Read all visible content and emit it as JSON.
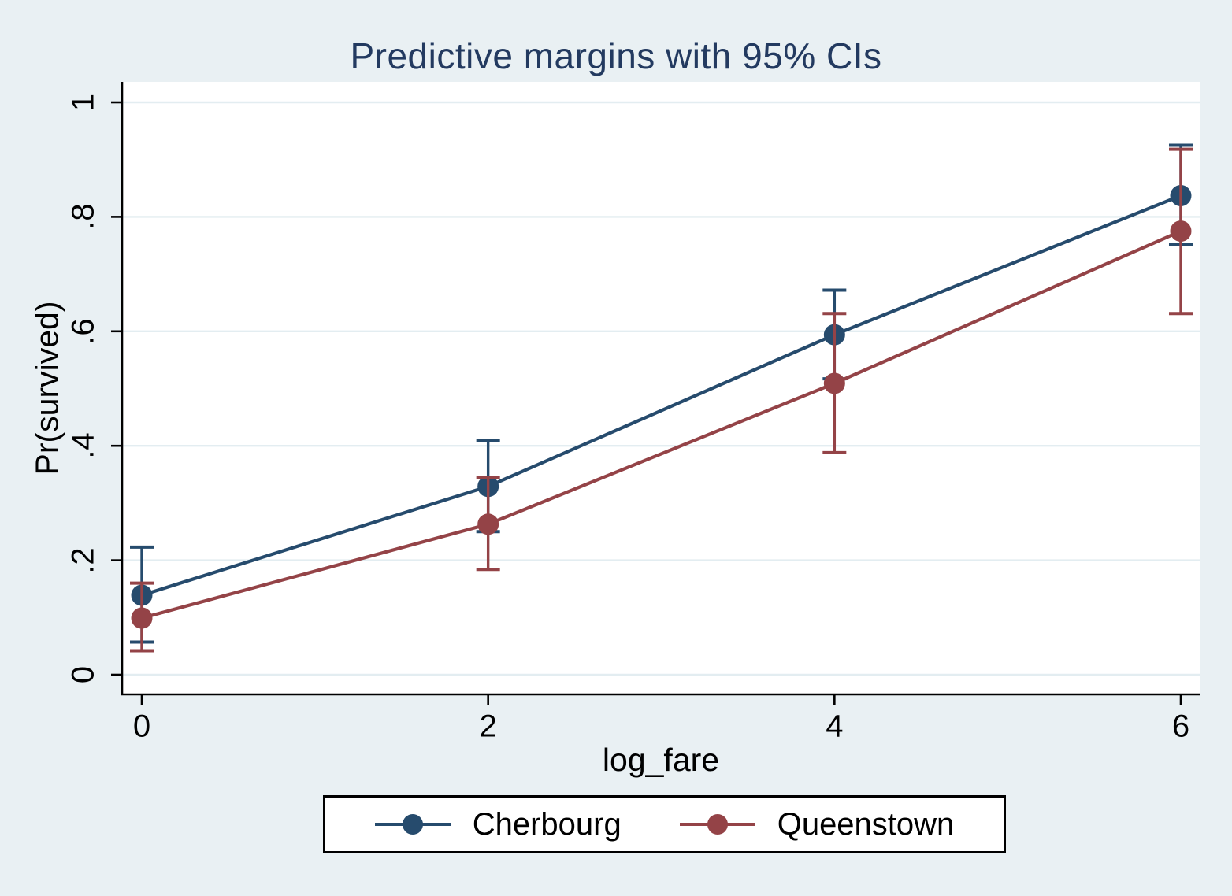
{
  "title": {
    "text": "Predictive margins with 95% CIs"
  },
  "colors": {
    "background": "#e9f0f3",
    "plot_background": "#ffffff",
    "gridline": "#e3edf1",
    "axis": "#000000",
    "title_text": "#233a60",
    "navy": "#264b6d",
    "maroon": "#944347"
  },
  "y_axis": {
    "label": "Pr(survived)",
    "ticks": [
      "0",
      ".2",
      ".4",
      ".6",
      ".8",
      "1"
    ],
    "tick_values": [
      0,
      0.2,
      0.4,
      0.6,
      0.8,
      1
    ]
  },
  "x_axis": {
    "label": "log_fare",
    "ticks": [
      "0",
      "2",
      "4",
      "6"
    ],
    "tick_values": [
      0,
      2,
      4,
      6
    ]
  },
  "legend": {
    "items": [
      {
        "label": "Cherbourg",
        "color": "#264b6d"
      },
      {
        "label": "Queenstown",
        "color": "#944347"
      }
    ]
  },
  "chart_data": {
    "type": "line",
    "title": "Predictive margins with 95% CIs",
    "xlabel": "log_fare",
    "ylabel": "Pr(survived)",
    "x": [
      0,
      2,
      4,
      6
    ],
    "xlim": [
      -0.11,
      6.11
    ],
    "ylim": [
      -0.03,
      1.03
    ],
    "grid": true,
    "legend_position": "bottom",
    "error_bars": "95% CI",
    "series": [
      {
        "name": "Cherbourg",
        "color": "#264b6d",
        "values": [
          0.139,
          0.329,
          0.594,
          0.837
        ],
        "ci_low": [
          0.057,
          0.25,
          0.517,
          0.751
        ],
        "ci_high": [
          0.223,
          0.409,
          0.672,
          0.925
        ]
      },
      {
        "name": "Queenstown",
        "color": "#944347",
        "values": [
          0.099,
          0.263,
          0.509,
          0.775
        ],
        "ci_low": [
          0.042,
          0.184,
          0.388,
          0.631
        ],
        "ci_high": [
          0.16,
          0.345,
          0.631,
          0.918
        ]
      }
    ]
  }
}
